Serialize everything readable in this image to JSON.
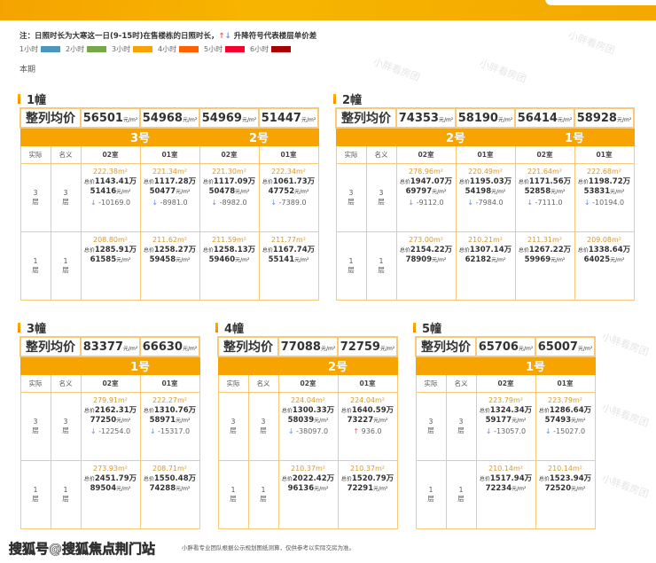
{
  "note": {
    "text": "注：日照时长为大寒这一日(9-15时)在售楼栋的日照时长，",
    "up_icon": "arrow-up-icon",
    "down_icon": "arrow-down-icon",
    "suffix": "升降符号代表楼层单价差"
  },
  "legend": [
    {
      "label": "1小时",
      "color": "#4a96c0"
    },
    {
      "label": "2小时",
      "color": "#76a84a"
    },
    {
      "label": "3小时",
      "color": "#f8a400"
    },
    {
      "label": "4小时",
      "color": "#ff6000"
    },
    {
      "label": "5小时",
      "color": "#f5002e"
    },
    {
      "label": "6小时",
      "color": "#a80000"
    }
  ],
  "period": "本期",
  "labels": {
    "avg": "整列均价",
    "unit": "元/m²",
    "actual": "实际",
    "nominal": "名义",
    "total_prefix": "总价",
    "wan": "万",
    "floor": "层"
  },
  "buildings": [
    {
      "title": "1幢",
      "avgs": [
        "56501",
        "54968",
        "54969",
        "51447"
      ],
      "units": [
        "3号",
        "2号"
      ],
      "rooms": [
        "02室",
        "01室",
        "02室",
        "01室"
      ],
      "floors": [
        {
          "actual": "3",
          "nominal": "3",
          "cells": [
            {
              "area": "222.38m²",
              "total": "1143.41",
              "price": "51416",
              "dir": "down",
              "diff": "-10169.0"
            },
            {
              "area": "221.34m²",
              "total": "1117.28",
              "price": "50477",
              "dir": "down",
              "diff": "-8981.0"
            },
            {
              "area": "221.30m²",
              "total": "1117.09",
              "price": "50478",
              "dir": "down",
              "diff": "-8982.0"
            },
            {
              "area": "222.34m²",
              "total": "1061.73",
              "price": "47752",
              "dir": "down",
              "diff": "-7389.0"
            }
          ]
        },
        {
          "actual": "1",
          "nominal": "1",
          "cells": [
            {
              "area": "208.80m²",
              "total": "1285.91",
              "price": "61585"
            },
            {
              "area": "211.62m²",
              "total": "1258.27",
              "price": "59458"
            },
            {
              "area": "211.59m²",
              "total": "1258.13",
              "price": "59460"
            },
            {
              "area": "211.77m²",
              "total": "1167.74",
              "price": "55141"
            }
          ]
        }
      ]
    },
    {
      "title": "2幢",
      "avgs": [
        "74353",
        "58190",
        "56414",
        "58928"
      ],
      "units": [
        "2号",
        "1号"
      ],
      "rooms": [
        "02室",
        "01室",
        "02室",
        "01室"
      ],
      "floors": [
        {
          "actual": "3",
          "nominal": "3",
          "cells": [
            {
              "area": "278.96m²",
              "total": "1947.07",
              "price": "69797",
              "dir": "down",
              "diff": "-9112.0"
            },
            {
              "area": "220.49m²",
              "total": "1195.03",
              "price": "54198",
              "dir": "down",
              "diff": "-7984.0"
            },
            {
              "area": "221.64m²",
              "total": "1171.56",
              "price": "52858",
              "dir": "down",
              "diff": "-7111.0"
            },
            {
              "area": "222.68m²",
              "total": "1198.72",
              "price": "53831",
              "dir": "down",
              "diff": "-10194.0"
            }
          ]
        },
        {
          "actual": "1",
          "nominal": "1",
          "cells": [
            {
              "area": "273.00m²",
              "total": "2154.22",
              "price": "78909"
            },
            {
              "area": "210.21m²",
              "total": "1307.14",
              "price": "62182"
            },
            {
              "area": "211.31m²",
              "total": "1267.22",
              "price": "59969"
            },
            {
              "area": "209.08m²",
              "total": "1338.64",
              "price": "64025"
            }
          ]
        }
      ]
    },
    {
      "title": "3幢",
      "avgs": [
        "83377",
        "66630"
      ],
      "units": [
        "1号"
      ],
      "rooms": [
        "02室",
        "01室"
      ],
      "floors": [
        {
          "actual": "3",
          "nominal": "3",
          "cells": [
            {
              "area": "279.91m²",
              "total": "2162.31",
              "price": "77250",
              "dir": "down",
              "diff": "-12254.0"
            },
            {
              "area": "222.27m²",
              "total": "1310.76",
              "price": "58971",
              "dir": "down",
              "diff": "-15317.0"
            }
          ]
        },
        {
          "actual": "1",
          "nominal": "1",
          "cells": [
            {
              "area": "273.93m²",
              "total": "2451.79",
              "price": "89504"
            },
            {
              "area": "208.71m²",
              "total": "1550.48",
              "price": "74288"
            }
          ]
        }
      ]
    },
    {
      "title": "4幢",
      "avgs": [
        "77088",
        "72759"
      ],
      "units": [
        "2号"
      ],
      "rooms": [
        "02室",
        "01室"
      ],
      "floors": [
        {
          "actual": "3",
          "nominal": "3",
          "cells": [
            {
              "area": "224.04m²",
              "total": "1300.33",
              "price": "58039",
              "dir": "down",
              "diff": "-38097.0"
            },
            {
              "area": "224.04m²",
              "total": "1640.59",
              "price": "73227",
              "dir": "up",
              "diff": "936.0"
            }
          ]
        },
        {
          "actual": "1",
          "nominal": "1",
          "cells": [
            {
              "area": "210.37m²",
              "total": "2022.42",
              "price": "96136"
            },
            {
              "area": "210.37m²",
              "total": "1520.79",
              "price": "72291"
            }
          ]
        }
      ]
    },
    {
      "title": "5幢",
      "avgs": [
        "65706",
        "65007"
      ],
      "units": [
        "1号"
      ],
      "rooms": [
        "02室",
        "01室"
      ],
      "floors": [
        {
          "actual": "3",
          "nominal": "3",
          "cells": [
            {
              "area": "223.79m²",
              "total": "1324.34",
              "price": "59177",
              "dir": "down",
              "diff": "-13057.0"
            },
            {
              "area": "223.79m²",
              "total": "1286.64",
              "price": "57493",
              "dir": "down",
              "diff": "-15027.0"
            }
          ]
        },
        {
          "actual": "1",
          "nominal": "1",
          "cells": [
            {
              "area": "210.14m²",
              "total": "1517.94",
              "price": "72234"
            },
            {
              "area": "210.14m²",
              "total": "1523.94",
              "price": "72520"
            }
          ]
        }
      ]
    }
  ],
  "watermark": "小胖看房团",
  "footer": "小胖看专业团队根据公示规划图纸测算，仅供参考以实际交房为准。",
  "source_overlay": "搜狐号@搜狐焦点荆门站"
}
